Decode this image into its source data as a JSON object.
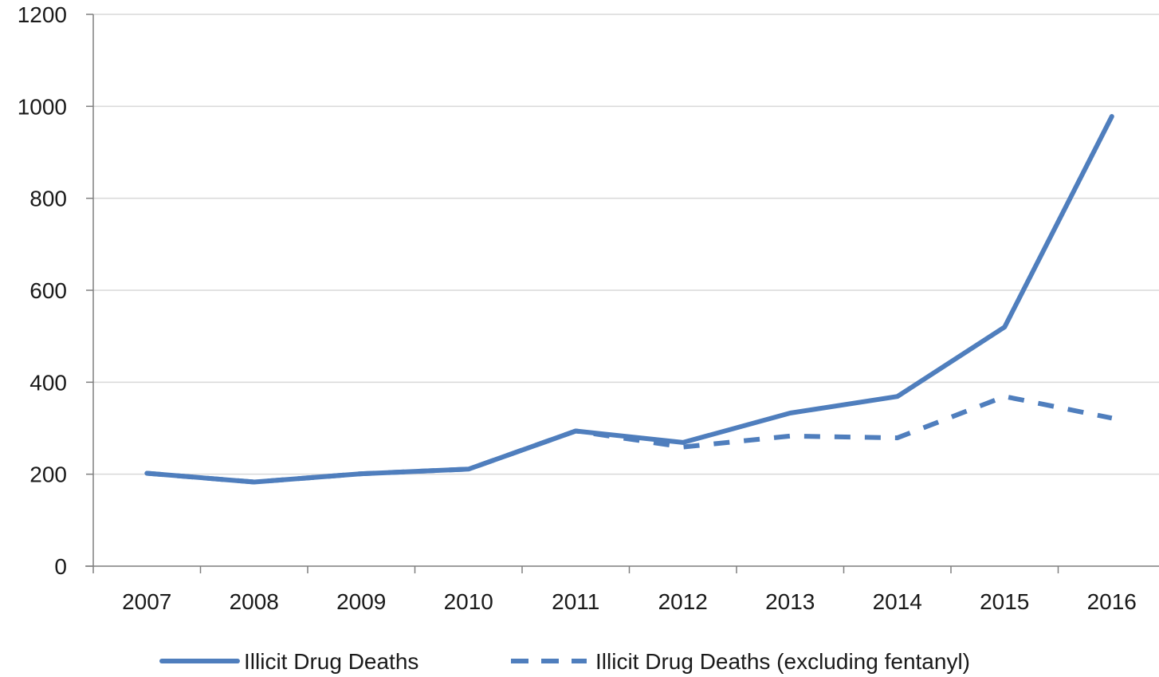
{
  "chart_data": {
    "type": "line",
    "categories": [
      "2007",
      "2008",
      "2009",
      "2010",
      "2011",
      "2012",
      "2013",
      "2014",
      "2015",
      "2016"
    ],
    "series": [
      {
        "name": "Illicit Drug Deaths",
        "values": [
          202,
          183,
          201,
          211,
          294,
          269,
          333,
          369,
          520,
          978
        ],
        "style": "solid",
        "color": "#4F7EBD"
      },
      {
        "name": "Illicit Drug Deaths (excluding fentanyl)",
        "values": [
          202,
          183,
          201,
          211,
          294,
          259,
          283,
          279,
          369,
          322
        ],
        "style": "dashed",
        "color": "#4F7EBD"
      }
    ],
    "yticks": [
      "0",
      "200",
      "400",
      "600",
      "800",
      "1000",
      "1200"
    ],
    "ylim": [
      0,
      1200
    ],
    "grid": true,
    "legend_position": "bottom",
    "title": "",
    "xlabel": "",
    "ylabel": ""
  }
}
